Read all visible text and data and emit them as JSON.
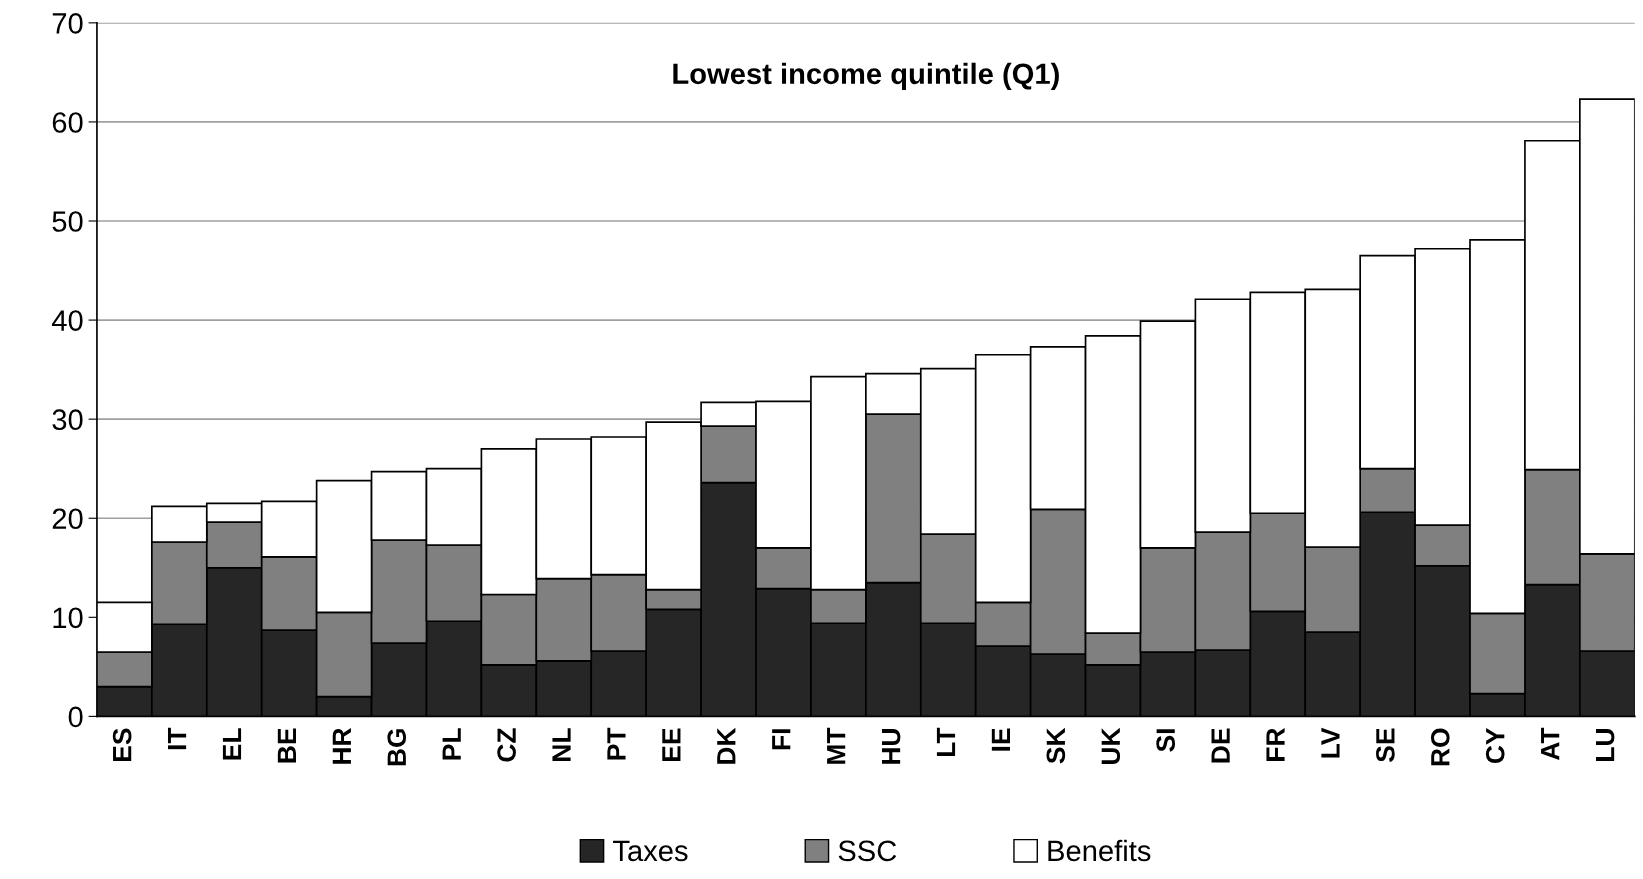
{
  "chart_data": {
    "type": "bar",
    "title": "Lowest income quintile (Q1)",
    "stacked": true,
    "categories": [
      "ES",
      "IT",
      "EL",
      "BE",
      "HR",
      "BG",
      "PL",
      "CZ",
      "NL",
      "PT",
      "EE",
      "DK",
      "FI",
      "MT",
      "HU",
      "LT",
      "IE",
      "SK",
      "UK",
      "SI",
      "DE",
      "FR",
      "LV",
      "SE",
      "RO",
      "CY",
      "AT",
      "LU"
    ],
    "series": [
      {
        "name": "Taxes",
        "color": "#262626",
        "values": [
          3.0,
          9.3,
          15.0,
          8.7,
          2.0,
          7.4,
          9.6,
          5.2,
          5.6,
          6.6,
          10.8,
          23.6,
          12.9,
          9.4,
          13.5,
          9.4,
          7.1,
          6.3,
          5.2,
          6.5,
          6.7,
          10.6,
          8.5,
          20.6,
          15.2,
          2.3,
          13.3,
          6.6
        ]
      },
      {
        "name": "SSC",
        "color": "#808080",
        "values": [
          3.5,
          8.3,
          4.6,
          7.4,
          8.5,
          10.4,
          7.7,
          7.1,
          8.3,
          7.7,
          2.0,
          5.7,
          4.1,
          3.4,
          17.0,
          9.0,
          4.4,
          14.6,
          3.2,
          10.5,
          11.9,
          9.9,
          8.6,
          4.4,
          4.1,
          8.1,
          11.6,
          9.8
        ]
      },
      {
        "name": "Benefits",
        "color": "#ffffff",
        "values": [
          5.0,
          3.6,
          1.9,
          5.6,
          13.3,
          6.9,
          7.7,
          14.7,
          14.1,
          13.9,
          16.9,
          2.4,
          14.8,
          21.5,
          4.1,
          16.7,
          25.0,
          16.4,
          30.0,
          22.9,
          23.5,
          22.3,
          26.0,
          21.5,
          27.9,
          37.7,
          33.2,
          45.9
        ]
      }
    ],
    "ylim": [
      0,
      70
    ],
    "yticks": [
      0,
      10,
      20,
      30,
      40,
      50,
      60,
      70
    ],
    "grid": "y",
    "legend": "bottom"
  }
}
